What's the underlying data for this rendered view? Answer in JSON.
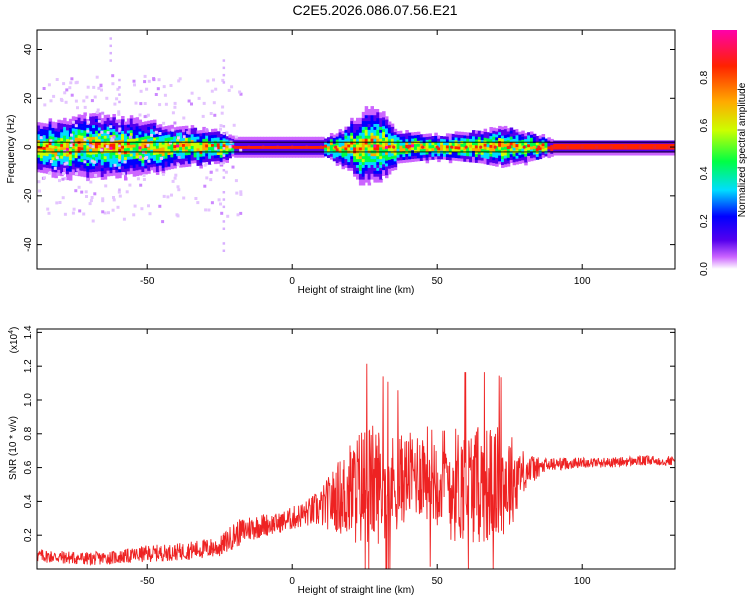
{
  "figure": {
    "title": "C2E5.2026.086.07.56.E21"
  },
  "colors": {
    "snr_line": "#ee2222",
    "ridge": "#ee2222",
    "colorbar": [
      "#ffffff",
      "#cc66ff",
      "#5500ee",
      "#0000ff",
      "#00ddff",
      "#00ff44",
      "#ccff00",
      "#ffaa00",
      "#ff2200",
      "#ff00aa"
    ]
  },
  "chart_data": [
    {
      "id": "spectrogram",
      "type": "heatmap",
      "title": "",
      "xlabel": "Height of straight line (km)",
      "ylabel": "Frequency (Hz)",
      "xlim": [
        -88,
        132
      ],
      "ylim": [
        -50,
        48
      ],
      "xticks": [
        -50,
        0,
        50,
        100
      ],
      "yticks": [
        -40,
        -20,
        0,
        20,
        40
      ],
      "colorbar": {
        "label": "Normalized spectral amplitude",
        "range": [
          0,
          1
        ],
        "ticks": [
          "0.0",
          "0.2",
          "0.4",
          "0.6",
          "0.8"
        ]
      },
      "reference_lines_hz": [
        2,
        -2
      ],
      "activity_profile": [
        {
          "x": -88,
          "width_hz": 6,
          "jitter_hz": 2
        },
        {
          "x": -70,
          "width_hz": 8,
          "jitter_hz": 3
        },
        {
          "x": -55,
          "width_hz": 7,
          "jitter_hz": 3
        },
        {
          "x": -40,
          "width_hz": 5,
          "jitter_hz": 2
        },
        {
          "x": -25,
          "width_hz": 4,
          "jitter_hz": 1.5
        },
        {
          "x": -20,
          "width_hz": 2,
          "jitter_hz": 0.5
        },
        {
          "x": 10,
          "width_hz": 2,
          "jitter_hz": 0.5
        },
        {
          "x": 18,
          "width_hz": 5,
          "jitter_hz": 2
        },
        {
          "x": 24,
          "width_hz": 9,
          "jitter_hz": 4
        },
        {
          "x": 30,
          "width_hz": 9,
          "jitter_hz": 4
        },
        {
          "x": 36,
          "width_hz": 4,
          "jitter_hz": 1.5
        },
        {
          "x": 50,
          "width_hz": 3,
          "jitter_hz": 1
        },
        {
          "x": 65,
          "width_hz": 4,
          "jitter_hz": 1.5
        },
        {
          "x": 72,
          "width_hz": 5,
          "jitter_hz": 2
        },
        {
          "x": 85,
          "width_hz": 3,
          "jitter_hz": 1
        },
        {
          "x": 90,
          "width_hz": 1.5,
          "jitter_hz": 0.3
        },
        {
          "x": 132,
          "width_hz": 1.5,
          "jitter_hz": 0.3
        }
      ]
    },
    {
      "id": "snr",
      "type": "line",
      "title": "",
      "xlabel": "Height of straight line (km)",
      "ylabel": "SNR (10 * v/v)",
      "y_multiplier": "x10^4",
      "xlim": [
        -88,
        132
      ],
      "ylim": [
        0,
        1.42
      ],
      "xticks": [
        -50,
        0,
        50,
        100
      ],
      "yticks": [
        0.2,
        0.4,
        0.6,
        0.8,
        1.0,
        1.2,
        1.4
      ],
      "series": [
        {
          "x": [
            -88,
            -80,
            -70,
            -60,
            -50,
            -40,
            -30,
            -25,
            -20,
            -15,
            -10,
            -5,
            0,
            5,
            10,
            15,
            20,
            25,
            30,
            35,
            40,
            45,
            50,
            55,
            60,
            65,
            70,
            75,
            80,
            85,
            90,
            100,
            110,
            120,
            132
          ],
          "mean": [
            0.08,
            0.07,
            0.06,
            0.07,
            0.09,
            0.1,
            0.12,
            0.13,
            0.2,
            0.24,
            0.26,
            0.27,
            0.3,
            0.33,
            0.36,
            0.42,
            0.45,
            0.5,
            0.5,
            0.5,
            0.55,
            0.58,
            0.55,
            0.5,
            0.5,
            0.5,
            0.5,
            0.52,
            0.58,
            0.6,
            0.62,
            0.63,
            0.63,
            0.64,
            0.64
          ],
          "noise": [
            0.04,
            0.04,
            0.04,
            0.04,
            0.05,
            0.05,
            0.06,
            0.06,
            0.08,
            0.08,
            0.07,
            0.06,
            0.07,
            0.08,
            0.12,
            0.2,
            0.3,
            0.38,
            0.35,
            0.3,
            0.25,
            0.28,
            0.3,
            0.35,
            0.35,
            0.35,
            0.35,
            0.3,
            0.12,
            0.06,
            0.04,
            0.03,
            0.03,
            0.03,
            0.03
          ]
        }
      ]
    }
  ]
}
